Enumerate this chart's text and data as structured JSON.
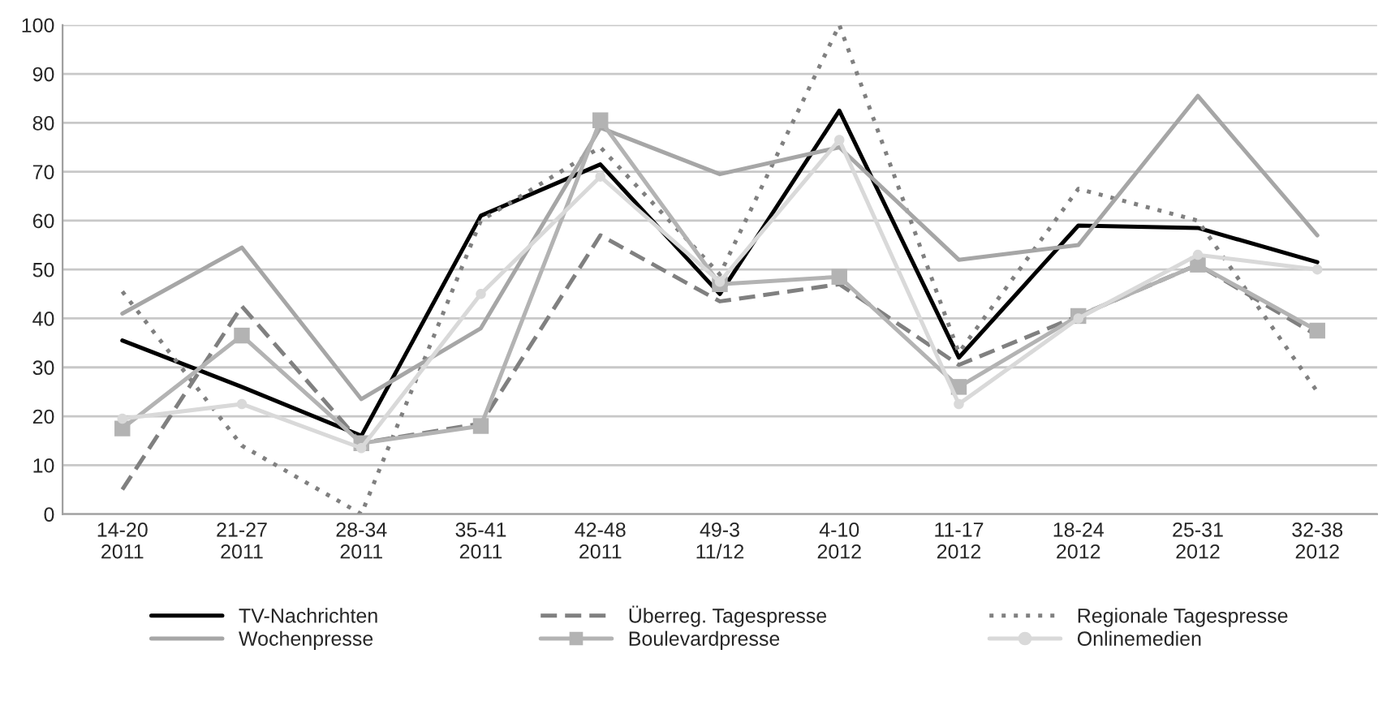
{
  "chart_data": {
    "type": "line",
    "categories": [
      "14-20\n2011",
      "21-27\n2011",
      "28-34\n2011",
      "35-41\n2011",
      "42-48\n2011",
      "49-3\n11/12",
      "4-10\n2012",
      "11-17\n2012",
      "18-24\n2012",
      "25-31\n2012",
      "32-38\n2012"
    ],
    "series": [
      {
        "name": "TV-Nachrichten",
        "color": "#000000",
        "line_style": "solid",
        "marker": "none",
        "values": [
          35.5,
          26,
          16,
          61,
          71.5,
          45,
          82.5,
          32,
          59,
          58.5,
          51.5
        ]
      },
      {
        "name": "Überreg. Tagespresse",
        "color": "#808080",
        "line_style": "dashed",
        "marker": "none",
        "values": [
          5,
          42.5,
          14.5,
          18.5,
          57,
          43.5,
          47,
          30.5,
          40.5,
          51,
          36.5
        ]
      },
      {
        "name": "Regionale Tagespresse",
        "color": "#808080",
        "line_style": "dotted",
        "marker": "none",
        "values": [
          45.5,
          14,
          0,
          60,
          75,
          49,
          100,
          33,
          66.5,
          60,
          25
        ]
      },
      {
        "name": "Wochenpresse",
        "color": "#a6a6a6",
        "line_style": "solid",
        "marker": "none",
        "values": [
          41,
          54.5,
          23.5,
          38,
          79,
          69.5,
          75,
          52,
          55,
          85.5,
          57
        ]
      },
      {
        "name": "Boulevardpresse",
        "color": "#b3b3b3",
        "line_style": "solid",
        "marker": "square",
        "values": [
          17.5,
          36.5,
          14.5,
          18,
          80.5,
          47,
          48.5,
          26,
          40.5,
          51,
          37.5
        ]
      },
      {
        "name": "Onlinemedien",
        "color": "#d9d9d9",
        "line_style": "solid",
        "marker": "circle",
        "values": [
          19.5,
          22.5,
          13.5,
          45,
          69,
          47.5,
          76.5,
          22.5,
          40,
          53,
          50
        ]
      }
    ],
    "ylim": [
      0,
      100
    ],
    "yticks": [
      0,
      10,
      20,
      30,
      40,
      50,
      60,
      70,
      80,
      90,
      100
    ],
    "grid": "y",
    "legend": "bottom"
  }
}
